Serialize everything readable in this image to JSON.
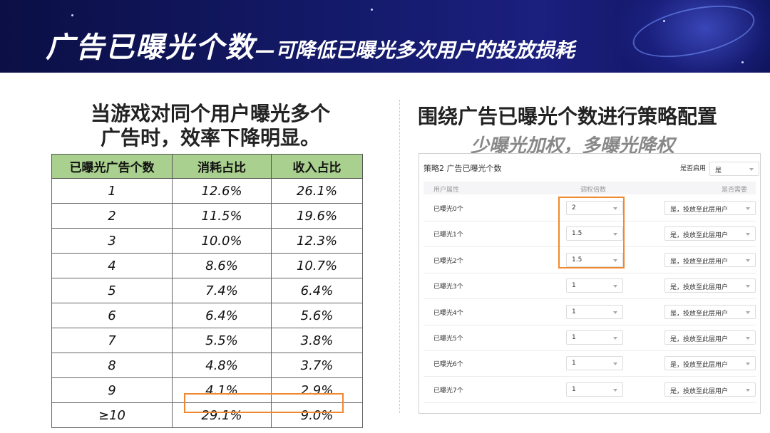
{
  "header": {
    "title_main": "广告已曝光个数",
    "title_sub": "—可降低已曝光多次用户的投放损耗"
  },
  "left": {
    "heading_line1": "当游戏对同个用户曝光多个",
    "heading_line2": "广告时，效率下降明显。",
    "table": {
      "columns": [
        "已曝光广告个数",
        "消耗占比",
        "收入占比"
      ],
      "rows": [
        [
          "1",
          "12.6%",
          "26.1%"
        ],
        [
          "2",
          "11.5%",
          "19.6%"
        ],
        [
          "3",
          "10.0%",
          "12.3%"
        ],
        [
          "4",
          "8.6%",
          "10.7%"
        ],
        [
          "5",
          "7.4%",
          "6.4%"
        ],
        [
          "6",
          "6.4%",
          "5.6%"
        ],
        [
          "7",
          "5.5%",
          "3.8%"
        ],
        [
          "8",
          "4.8%",
          "3.7%"
        ],
        [
          "9",
          "4.1%",
          "2.9%"
        ],
        [
          "≥10",
          "29.1%",
          "9.0%"
        ]
      ]
    }
  },
  "right": {
    "heading": "围绕广告已曝光个数进行策略配置",
    "subheading": "少曝光加权，多曝光降权",
    "panel": {
      "title": "策略2 广告已曝光个数",
      "enable_label": "是否启用",
      "enable_value": "是",
      "columns": [
        "用户属性",
        "调权倍数",
        "是否需要"
      ],
      "rows": [
        {
          "label": "已曝光0个",
          "multiplier": "2",
          "need": "是，投放至此层用户"
        },
        {
          "label": "已曝光1个",
          "multiplier": "1.5",
          "need": "是，投放至此层用户"
        },
        {
          "label": "已曝光2个",
          "multiplier": "1.5",
          "need": "是，投放至此层用户"
        },
        {
          "label": "已曝光3个",
          "multiplier": "1",
          "need": "是，投放至此层用户"
        },
        {
          "label": "已曝光4个",
          "multiplier": "1",
          "need": "是，投放至此层用户"
        },
        {
          "label": "已曝光5个",
          "multiplier": "1",
          "need": "是，投放至此层用户"
        },
        {
          "label": "已曝光6个",
          "multiplier": "1",
          "need": "是，投放至此层用户"
        },
        {
          "label": "已曝光7个",
          "multiplier": "1",
          "need": "是，投放至此层用户"
        }
      ]
    }
  },
  "colors": {
    "banner": "#141a6a",
    "table_header": "#a9d08e",
    "highlight": "#f0882f"
  }
}
